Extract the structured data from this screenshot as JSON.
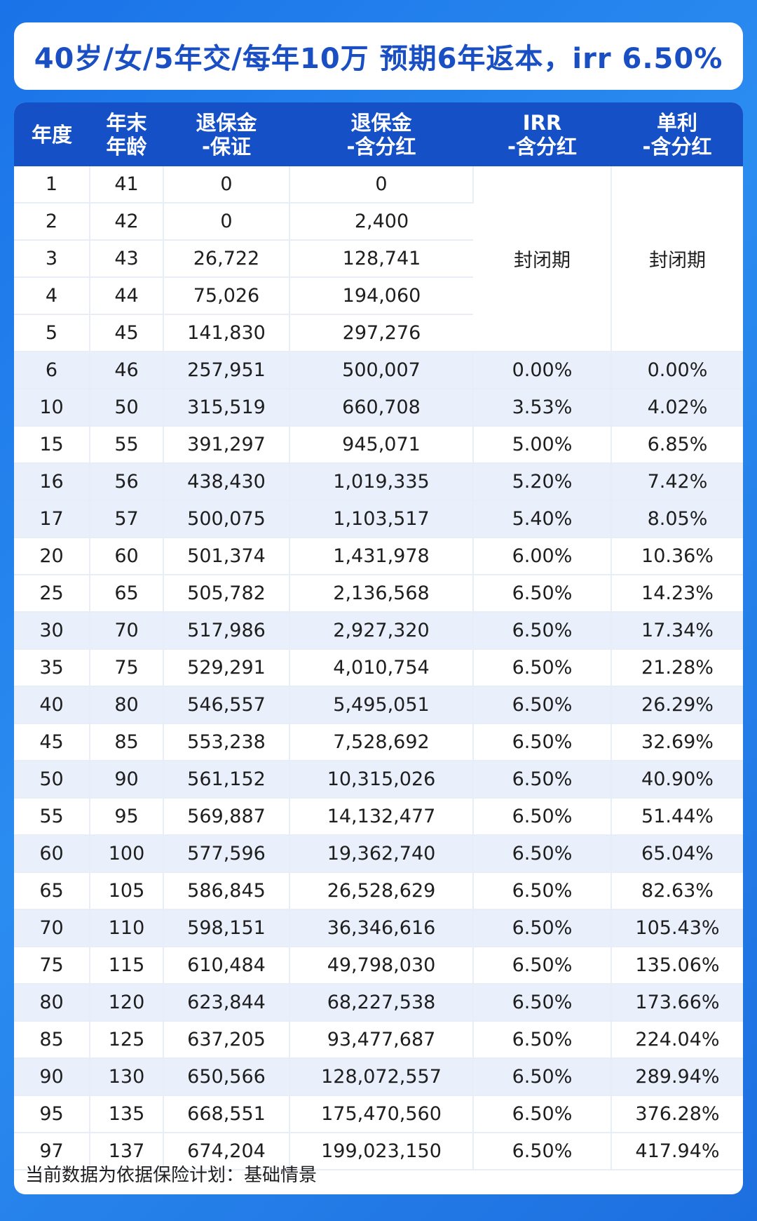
{
  "title": "40岁/女/5年交/每年10万  预期6年返本，irr 6.50%",
  "headers": [
    [
      "年度"
    ],
    [
      "年末",
      "年龄"
    ],
    [
      "退保金",
      "-保证"
    ],
    [
      "退保金",
      "-含分红"
    ],
    [
      "IRR",
      "-含分红"
    ],
    [
      "单利",
      "-含分红"
    ]
  ],
  "closed_period_label": "封闭期",
  "closed_rows": [
    [
      "1",
      "41",
      "0",
      "0"
    ],
    [
      "2",
      "42",
      "0",
      "2,400"
    ],
    [
      "3",
      "43",
      "26,722",
      "128,741"
    ],
    [
      "4",
      "44",
      "75,026",
      "194,060"
    ],
    [
      "5",
      "45",
      "141,830",
      "297,276"
    ]
  ],
  "rows": [
    [
      "6",
      "46",
      "257,951",
      "500,007",
      "0.00%",
      "0.00%"
    ],
    [
      "10",
      "50",
      "315,519",
      "660,708",
      "3.53%",
      "4.02%"
    ],
    [
      "15",
      "55",
      "391,297",
      "945,071",
      "5.00%",
      "6.85%"
    ],
    [
      "16",
      "56",
      "438,430",
      "1,019,335",
      "5.20%",
      "7.42%"
    ],
    [
      "17",
      "57",
      "500,075",
      "1,103,517",
      "5.40%",
      "8.05%"
    ],
    [
      "20",
      "60",
      "501,374",
      "1,431,978",
      "6.00%",
      "10.36%"
    ],
    [
      "25",
      "65",
      "505,782",
      "2,136,568",
      "6.50%",
      "14.23%"
    ],
    [
      "30",
      "70",
      "517,986",
      "2,927,320",
      "6.50%",
      "17.34%"
    ],
    [
      "35",
      "75",
      "529,291",
      "4,010,754",
      "6.50%",
      "21.28%"
    ],
    [
      "40",
      "80",
      "546,557",
      "5,495,051",
      "6.50%",
      "26.29%"
    ],
    [
      "45",
      "85",
      "553,238",
      "7,528,692",
      "6.50%",
      "32.69%"
    ],
    [
      "50",
      "90",
      "561,152",
      "10,315,026",
      "6.50%",
      "40.90%"
    ],
    [
      "55",
      "95",
      "569,887",
      "14,132,477",
      "6.50%",
      "51.44%"
    ],
    [
      "60",
      "100",
      "577,596",
      "19,362,740",
      "6.50%",
      "65.04%"
    ],
    [
      "65",
      "105",
      "586,845",
      "26,528,629",
      "6.50%",
      "82.63%"
    ],
    [
      "70",
      "110",
      "598,151",
      "36,346,616",
      "6.50%",
      "105.43%"
    ],
    [
      "75",
      "115",
      "610,484",
      "49,798,030",
      "6.50%",
      "135.06%"
    ],
    [
      "80",
      "120",
      "623,844",
      "68,227,538",
      "6.50%",
      "173.66%"
    ],
    [
      "85",
      "125",
      "637,205",
      "93,477,687",
      "6.50%",
      "224.04%"
    ],
    [
      "90",
      "130",
      "650,566",
      "128,072,557",
      "6.50%",
      "289.94%"
    ],
    [
      "95",
      "135",
      "668,551",
      "175,470,560",
      "6.50%",
      "376.28%"
    ],
    [
      "97",
      "137",
      "674,204",
      "199,023,150",
      "6.50%",
      "417.94%"
    ]
  ],
  "row_shading": [
    "shade",
    "shade",
    "white",
    "shade",
    "shade",
    "white",
    "white",
    "shade",
    "white",
    "shade",
    "white",
    "shade",
    "white",
    "shade",
    "white",
    "shade",
    "white",
    "shade",
    "white",
    "shade",
    "white",
    "white"
  ],
  "footnote": "当前数据为依据保险计划：基础情景"
}
